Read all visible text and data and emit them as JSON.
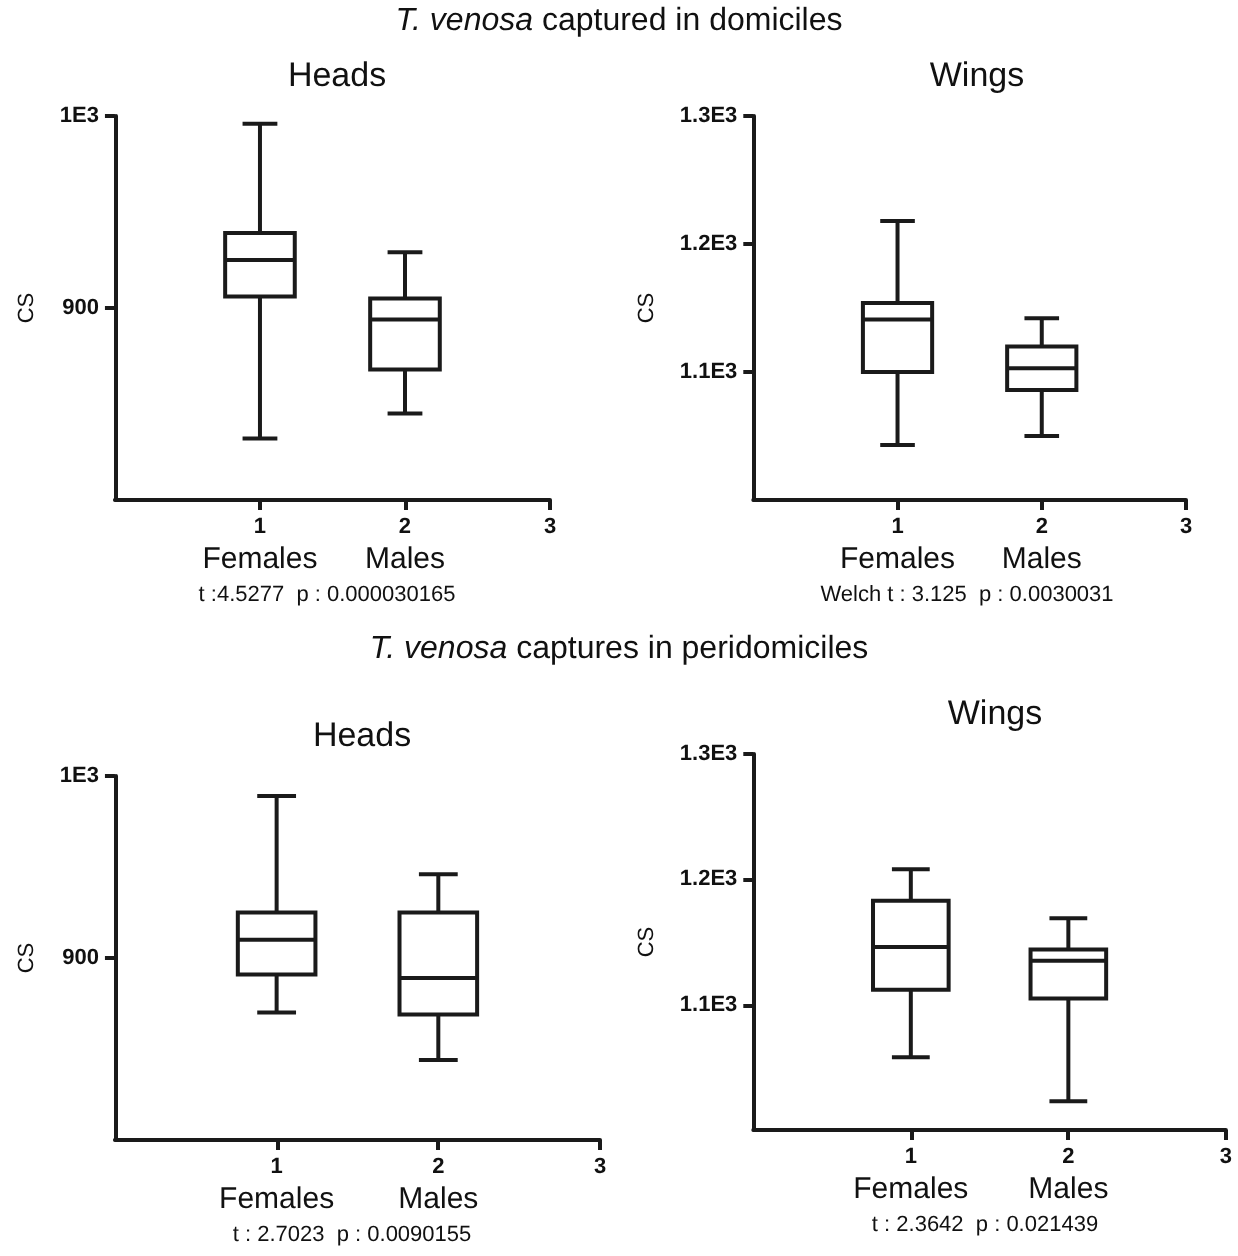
{
  "chart_data": [
    {
      "type": "box",
      "title": "Heads",
      "ylabel": "CS",
      "categories": [
        null,
        "1",
        "2",
        "3"
      ],
      "ylim": [
        800,
        1000
      ],
      "yticks": [
        900,
        {
          "value": 1000,
          "label": "1E3"
        }
      ],
      "series": [
        {
          "color": "#1a1a1a",
          "boxes": [
            null,
            {
              "low": 832,
              "q1": 906,
              "median": 925,
              "q3": 939,
              "high": 996
            },
            {
              "low": 845,
              "q1": 868,
              "median": 894,
              "q3": 905,
              "high": 929
            },
            null
          ]
        }
      ],
      "annotations": [
        "T. venosa captured in domiciles",
        "Females",
        "Males",
        "t :4.5277  p : 0.000030165"
      ]
    },
    {
      "type": "box",
      "title": "Wings",
      "ylabel": "CS",
      "categories": [
        null,
        "1",
        "2",
        "3"
      ],
      "ylim": [
        1000,
        1300
      ],
      "yticks": [
        {
          "value": 1100,
          "label": "1.1E3"
        },
        {
          "value": 1200,
          "label": "1.2E3"
        },
        {
          "value": 1300,
          "label": "1.3E3"
        }
      ],
      "series": [
        {
          "color": "#1a1a1a",
          "boxes": [
            null,
            {
              "low": 1043,
              "q1": 1100,
              "median": 1141,
              "q3": 1154,
              "high": 1218
            },
            {
              "low": 1050,
              "q1": 1086,
              "median": 1103,
              "q3": 1120,
              "high": 1142
            },
            null
          ]
        }
      ],
      "annotations": [
        "Females",
        "Males",
        "Welch t : 3.125  p : 0.0030031"
      ]
    },
    {
      "type": "box",
      "title": "Heads",
      "ylabel": "CS",
      "categories": [
        null,
        "1",
        "2",
        "3"
      ],
      "ylim": [
        800,
        1000
      ],
      "yticks": [
        900,
        {
          "value": 1000,
          "label": "1E3"
        }
      ],
      "series": [
        {
          "color": "#1a1a1a",
          "boxes": [
            null,
            {
              "low": 870,
              "q1": 891,
              "median": 910,
              "q3": 925,
              "high": 989
            },
            {
              "low": 844,
              "q1": 869,
              "median": 889,
              "q3": 925,
              "high": 946
            },
            null
          ]
        }
      ],
      "annotations": [
        "T. venosa captures in peridomiciles",
        "Females",
        "Males",
        "t : 2.7023  p : 0.0090155"
      ]
    },
    {
      "type": "box",
      "title": "Wings",
      "ylabel": "CS",
      "categories": [
        null,
        "1",
        "2",
        "3"
      ],
      "ylim": [
        1000,
        1300
      ],
      "yticks": [
        {
          "value": 1100,
          "label": "1.1E3"
        },
        {
          "value": 1200,
          "label": "1.2E3"
        },
        {
          "value": 1300,
          "label": "1.3E3"
        }
      ],
      "series": [
        {
          "color": "#1a1a1a",
          "boxes": [
            null,
            {
              "low": 1058,
              "q1": 1112,
              "median": 1146,
              "q3": 1183,
              "high": 1208
            },
            {
              "low": 1023,
              "q1": 1105,
              "median": 1135,
              "q3": 1144,
              "high": 1169
            },
            null
          ]
        }
      ],
      "annotations": [
        "Females",
        "Males",
        "t : 2.3642  p : 0.021439"
      ]
    }
  ]
}
